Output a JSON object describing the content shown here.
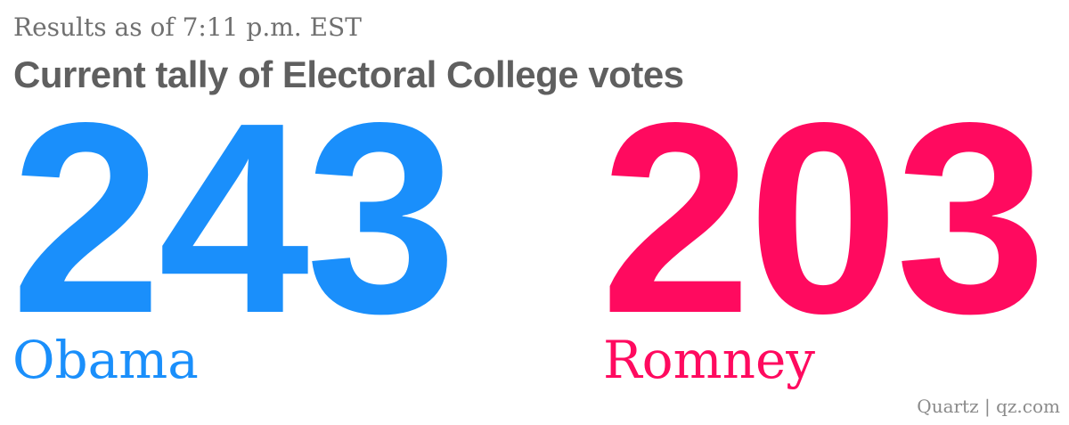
{
  "header": {
    "subtitle": "Results as of 7:11 p.m. EST",
    "title": "Current tally of Electoral College votes"
  },
  "candidates": [
    {
      "name": "Obama",
      "votes": "243",
      "color": "#1a8ffb"
    },
    {
      "name": "Romney",
      "votes": "203",
      "color": "#ff0a5f"
    }
  ],
  "footer": {
    "credit": "Quartz | qz.com"
  }
}
